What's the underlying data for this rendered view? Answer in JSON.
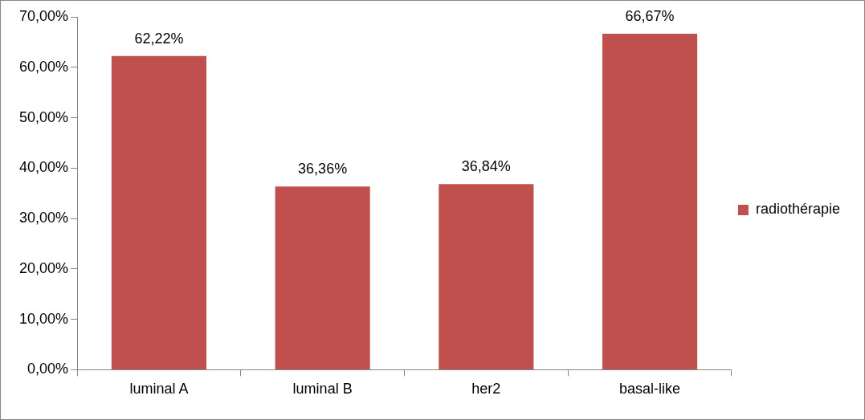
{
  "chart_data": {
    "type": "bar",
    "categories": [
      "luminal A",
      "luminal B",
      "her2",
      "basal-like"
    ],
    "series": [
      {
        "name": "radiothérapie",
        "color": "#c0504d",
        "values": [
          62.22,
          36.36,
          36.84,
          66.67
        ],
        "value_labels": [
          "62,22%",
          "36,36%",
          "36,84%",
          "66,67%"
        ]
      }
    ],
    "ylim": [
      0,
      70
    ],
    "yticks": [
      {
        "value": 0,
        "label": "0,00%"
      },
      {
        "value": 10,
        "label": "10,00%"
      },
      {
        "value": 20,
        "label": "20,00%"
      },
      {
        "value": 30,
        "label": "30,00%"
      },
      {
        "value": 40,
        "label": "40,00%"
      },
      {
        "value": 50,
        "label": "50,00%"
      },
      {
        "value": 60,
        "label": "60,00%"
      },
      {
        "value": 70,
        "label": "70,00%"
      }
    ],
    "legend": "right"
  }
}
